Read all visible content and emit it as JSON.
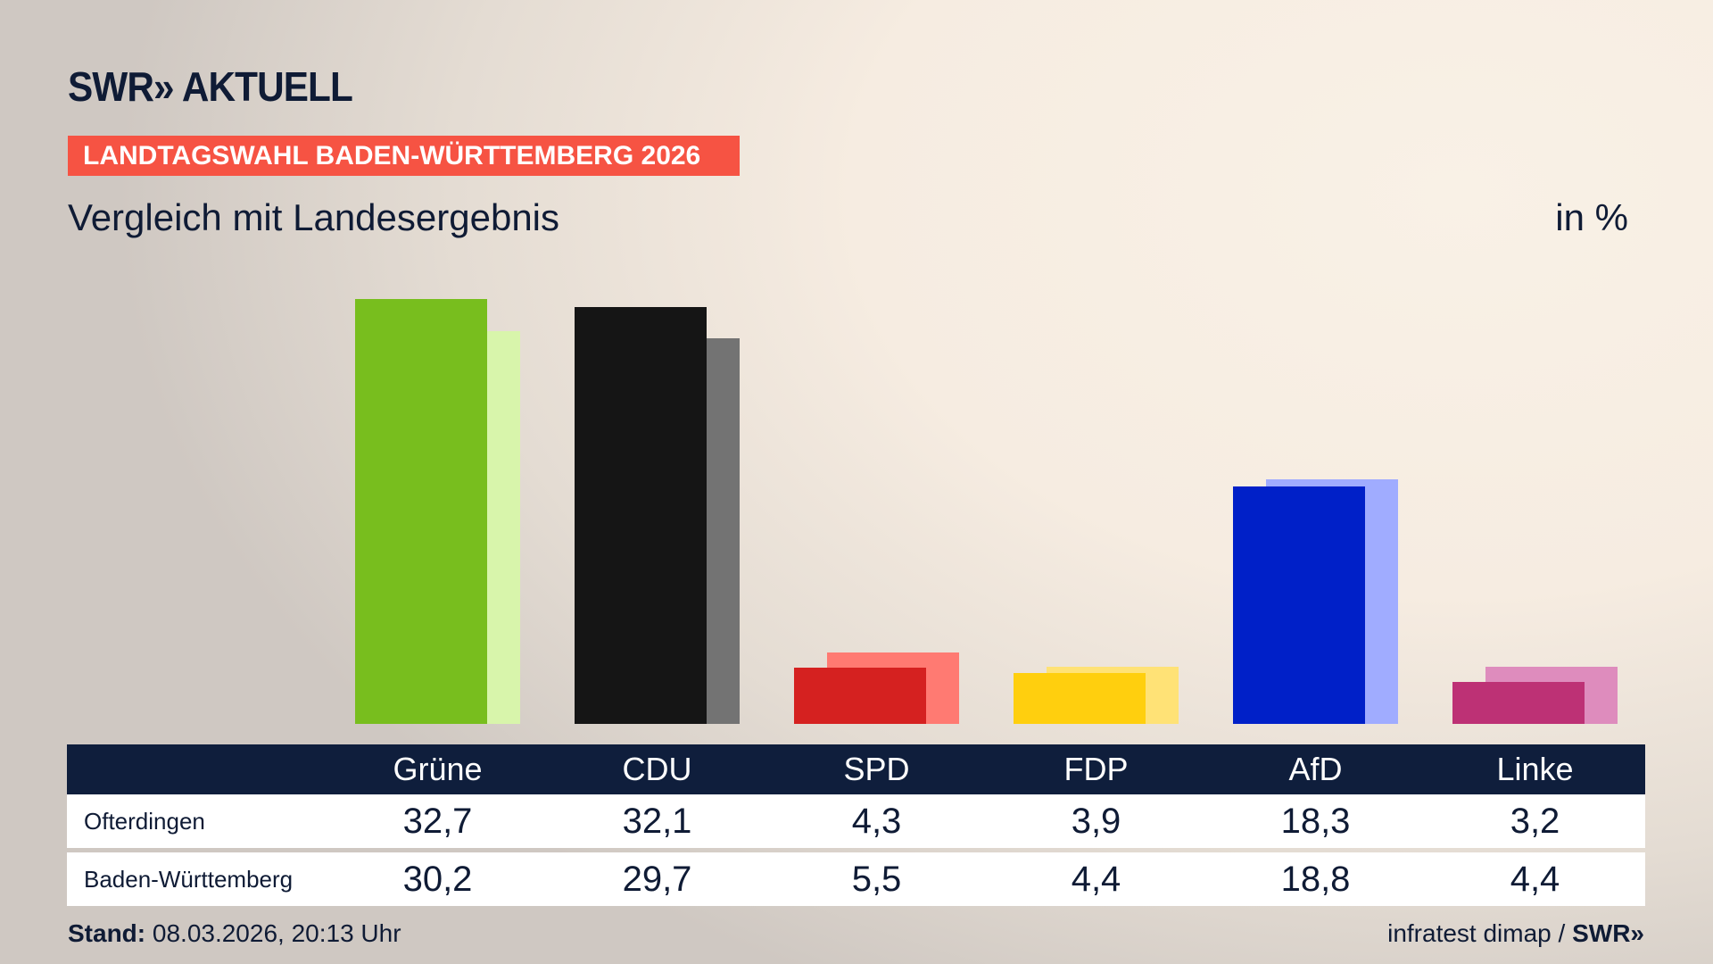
{
  "header": {
    "logo_text": "SWR» AKTUELL",
    "band": "LANDTAGSWAHL BADEN-WÜRTTEMBERG 2026",
    "subtitle": "Vergleich mit Landesergebnis",
    "unit": "in %"
  },
  "chart_data": {
    "type": "bar",
    "title": "Vergleich mit Landesergebnis",
    "ylabel": "in %",
    "ylim": [
      0,
      32.7
    ],
    "grid": false,
    "categories": [
      "Grüne",
      "CDU",
      "SPD",
      "FDP",
      "AfD",
      "Linke"
    ],
    "series": [
      {
        "name": "Ofterdingen",
        "values": [
          32.7,
          32.1,
          4.3,
          3.9,
          18.3,
          3.2
        ]
      },
      {
        "name": "Baden-Württemberg",
        "values": [
          30.2,
          29.7,
          5.5,
          4.4,
          18.8,
          4.4
        ]
      }
    ],
    "colors": {
      "front": [
        "#78be1e",
        "#151515",
        "#d52120",
        "#ffcf0e",
        "#0020c8",
        "#bd3175"
      ],
      "back": [
        "#d8f5ab",
        "#737373",
        "#ff7a72",
        "#ffe276",
        "#a0acff",
        "#de8cbd"
      ]
    }
  },
  "table": {
    "rows": [
      {
        "label": "Ofterdingen",
        "values": [
          "32,7",
          "32,1",
          "4,3",
          "3,9",
          "18,3",
          "3,2"
        ]
      },
      {
        "label": "Baden-Württemberg",
        "values": [
          "30,2",
          "29,7",
          "5,5",
          "4,4",
          "18,8",
          "4,4"
        ]
      }
    ]
  },
  "footer": {
    "stand_label": "Stand:",
    "stand_value": "08.03.2026, 20:13 Uhr",
    "source": "infratest dimap /",
    "source_logo": "SWR»"
  }
}
